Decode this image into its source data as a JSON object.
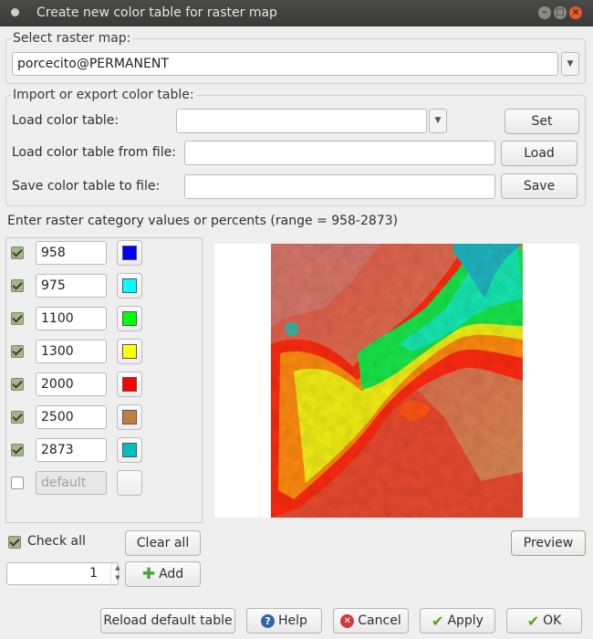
{
  "window": {
    "title": "Create new color table for raster map"
  },
  "raster_select": {
    "group_label": "Select raster map:",
    "value": "porcecito@PERMANENT"
  },
  "import_export": {
    "group_label": "Import or export color table:",
    "load_label": "Load color table:",
    "load_value": "",
    "set_button": "Set",
    "load_file_label": "Load color table from file:",
    "load_file_value": "",
    "load_button": "Load",
    "save_file_label": "Save color table to file:",
    "save_file_value": "",
    "save_button": "Save"
  },
  "rules": {
    "header": "Enter raster category values or percents (range = 958-2873)",
    "rows": [
      {
        "checked": true,
        "value": "958",
        "color": "#0000ff"
      },
      {
        "checked": true,
        "value": "975",
        "color": "#00ffff"
      },
      {
        "checked": true,
        "value": "1100",
        "color": "#00ff00"
      },
      {
        "checked": true,
        "value": "1300",
        "color": "#ffff00"
      },
      {
        "checked": true,
        "value": "2000",
        "color": "#ff0000"
      },
      {
        "checked": true,
        "value": "2500",
        "color": "#bf7f3f"
      },
      {
        "checked": true,
        "value": "2873",
        "color": "#00bfbf"
      },
      {
        "checked": false,
        "value": "default",
        "color": ""
      }
    ]
  },
  "controls": {
    "check_all": "Check all",
    "check_all_checked": true,
    "clear_all": "Clear all",
    "add_count": "1",
    "add_button": "Add",
    "preview_button": "Preview"
  },
  "footer": {
    "reload": "Reload default table",
    "help": "Help",
    "cancel": "Cancel",
    "apply": "Apply",
    "ok": "OK"
  },
  "icons": {
    "add": "plus-icon",
    "help": "question-icon",
    "cancel": "cancel-icon",
    "apply": "checkmark-icon",
    "ok": "checkmark-icon"
  }
}
